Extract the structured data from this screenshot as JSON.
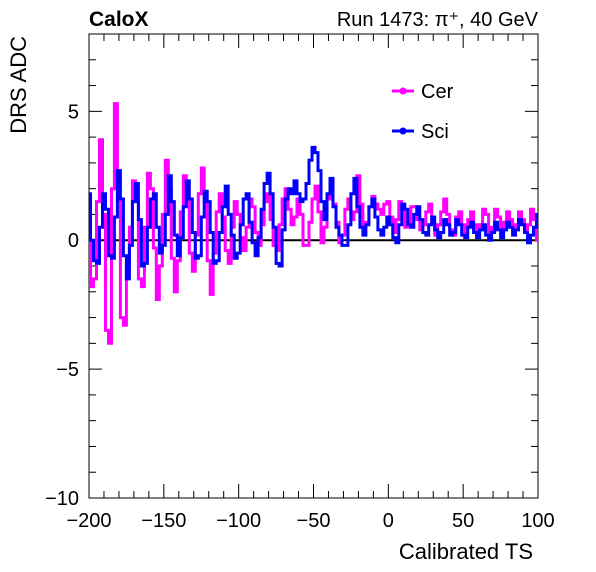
{
  "chart_data": {
    "type": "line",
    "header_left": "CaloX",
    "header_right": "Run 1473:   π⁺, 40 GeV",
    "xlabel": "Calibrated TS",
    "ylabel": "DRS ADC",
    "xlim": [
      -200,
      100
    ],
    "ylim": [
      -10,
      8
    ],
    "x_ticks": [
      -200,
      -150,
      -100,
      -50,
      0,
      50,
      100
    ],
    "x_tick_labels": [
      "−200",
      "−150",
      "−100",
      "−50",
      "0",
      "50",
      "100"
    ],
    "y_ticks": [
      -10,
      -5,
      0,
      5
    ],
    "y_tick_labels": [
      "−10",
      "−5",
      "0",
      "5"
    ],
    "reference_line_y": 0,
    "legend_position": "top-right",
    "series": [
      {
        "name": "Cer",
        "color": "#ff00ff",
        "x": [
          -200,
          -198,
          -196,
          -194,
          -192,
          -190,
          -188,
          -186,
          -184,
          -182,
          -180,
          -178,
          -176,
          -174,
          -172,
          -170,
          -168,
          -166,
          -164,
          -162,
          -160,
          -158,
          -156,
          -154,
          -152,
          -150,
          -148,
          -146,
          -144,
          -142,
          -140,
          -138,
          -136,
          -134,
          -132,
          -130,
          -128,
          -126,
          -124,
          -122,
          -120,
          -118,
          -116,
          -114,
          -112,
          -110,
          -108,
          -106,
          -104,
          -102,
          -100,
          -98,
          -96,
          -94,
          -92,
          -90,
          -88,
          -86,
          -84,
          -82,
          -80,
          -78,
          -76,
          -74,
          -72,
          -70,
          -68,
          -66,
          -64,
          -62,
          -60,
          -58,
          -56,
          -54,
          -52,
          -50,
          -48,
          -46,
          -44,
          -42,
          -40,
          -38,
          -36,
          -34,
          -32,
          -30,
          -28,
          -26,
          -24,
          -22,
          -20,
          -18,
          -16,
          -14,
          -12,
          -10,
          -8,
          -6,
          -4,
          -2,
          0,
          2,
          4,
          6,
          8,
          10,
          12,
          14,
          16,
          18,
          20,
          22,
          24,
          26,
          28,
          30,
          32,
          34,
          36,
          38,
          40,
          42,
          44,
          46,
          48,
          50,
          52,
          54,
          56,
          58,
          60,
          62,
          64,
          66,
          68,
          70,
          72,
          74,
          76,
          78,
          80,
          82,
          84,
          86,
          88,
          90,
          92,
          94,
          96,
          98,
          100
        ],
        "values": [
          1.5,
          -1.8,
          -1.5,
          1.5,
          3.9,
          1.0,
          -3.5,
          -4.0,
          2.0,
          5.3,
          1.5,
          -3.0,
          -3.3,
          -1.0,
          0.5,
          2.3,
          1.5,
          -1.5,
          -1.8,
          0.5,
          2.6,
          2.0,
          -0.3,
          -2.3,
          -1.0,
          1.0,
          3.1,
          2.0,
          -0.7,
          -2.0,
          -0.8,
          1.1,
          2.5,
          1.5,
          -0.5,
          -1.2,
          0.2,
          1.8,
          2.8,
          1.5,
          -0.8,
          -2.1,
          -0.5,
          1.1,
          1.8,
          0.9,
          -0.4,
          -0.9,
          0.5,
          1.5,
          1.0,
          0.1,
          -0.4,
          0.5,
          1.6,
          1.3,
          0.3,
          -0.2,
          0.6,
          1.5,
          1.8,
          0.8,
          -0.2,
          -0.4,
          0.6,
          1.6,
          2.0,
          1.2,
          0.6,
          0.9,
          1.6,
          1.0,
          -0.2,
          -0.2,
          0.7,
          1.6,
          2.1,
          1.1,
          -0.1,
          0.5,
          1.6,
          2.3,
          1.4,
          0.7,
          -0.1,
          0.2,
          1.2,
          1.6,
          0.8,
          1.1,
          2.5,
          1.4,
          0.6,
          0.7,
          1.3,
          1.7,
          1.4,
          1.2,
          1.0,
          1.4,
          1.5,
          0.9,
          0.3,
          0.8,
          1.5,
          1.2,
          0.5,
          0.7,
          1.3,
          1.3,
          0.8,
          0.4,
          0.6,
          1.1,
          1.4,
          0.7,
          0.2,
          0.6,
          1.1,
          1.6,
          1.0,
          0.4,
          0.2,
          0.9,
          1.1,
          0.6,
          0.3,
          0.8,
          1.1,
          0.6,
          0.2,
          0.6,
          1.2,
          1.0,
          0.3,
          0.5,
          1.2,
          0.9,
          0.5,
          0.7,
          1.1,
          0.8,
          0.4,
          0.6,
          1.1,
          0.8,
          0.3,
          0.6,
          1.2,
          0.8,
          0.0
        ]
      },
      {
        "name": "Sci",
        "color": "#0000ff",
        "x": [
          -200,
          -198,
          -196,
          -194,
          -192,
          -190,
          -188,
          -186,
          -184,
          -182,
          -180,
          -178,
          -176,
          -174,
          -172,
          -170,
          -168,
          -166,
          -164,
          -162,
          -160,
          -158,
          -156,
          -154,
          -152,
          -150,
          -148,
          -146,
          -144,
          -142,
          -140,
          -138,
          -136,
          -134,
          -132,
          -130,
          -128,
          -126,
          -124,
          -122,
          -120,
          -118,
          -116,
          -114,
          -112,
          -110,
          -108,
          -106,
          -104,
          -102,
          -100,
          -98,
          -96,
          -94,
          -92,
          -90,
          -88,
          -86,
          -84,
          -82,
          -80,
          -78,
          -76,
          -74,
          -72,
          -70,
          -68,
          -66,
          -64,
          -62,
          -60,
          -58,
          -56,
          -54,
          -52,
          -50,
          -48,
          -46,
          -44,
          -42,
          -40,
          -38,
          -36,
          -34,
          -32,
          -30,
          -28,
          -26,
          -24,
          -22,
          -20,
          -18,
          -16,
          -14,
          -12,
          -10,
          -8,
          -6,
          -4,
          -2,
          0,
          2,
          4,
          6,
          8,
          10,
          12,
          14,
          16,
          18,
          20,
          22,
          24,
          26,
          28,
          30,
          32,
          34,
          36,
          38,
          40,
          42,
          44,
          46,
          48,
          50,
          52,
          54,
          56,
          58,
          60,
          62,
          64,
          66,
          68,
          70,
          72,
          74,
          76,
          78,
          80,
          82,
          84,
          86,
          88,
          90,
          92,
          94,
          96,
          98,
          100
        ],
        "values": [
          1.8,
          0.0,
          -0.8,
          -0.9,
          0.5,
          1.8,
          1.2,
          -0.6,
          -0.7,
          0.9,
          2.7,
          1.6,
          -0.6,
          -1.5,
          -0.2,
          1.5,
          2.2,
          0.8,
          -1.0,
          -0.9,
          0.5,
          1.6,
          1.8,
          0.5,
          -0.5,
          -0.2,
          1.0,
          2.5,
          1.5,
          0.2,
          -0.6,
          0.1,
          1.3,
          2.3,
          1.6,
          0.3,
          -0.7,
          -0.6,
          0.9,
          1.9,
          1.5,
          0.3,
          -0.9,
          -0.8,
          0.3,
          1.3,
          2.1,
          1.0,
          0.2,
          -0.7,
          -0.5,
          0.6,
          1.6,
          1.8,
          0.7,
          -0.1,
          -0.6,
          0.1,
          1.2,
          2.2,
          2.6,
          1.8,
          0.5,
          -0.9,
          -1.0,
          0.4,
          1.6,
          2.0,
          1.8,
          2.3,
          1.8,
          1.5,
          1.6,
          2.2,
          3.1,
          3.6,
          3.4,
          2.7,
          1.5,
          0.8,
          1.8,
          2.4,
          1.3,
          0.5,
          0.2,
          -0.2,
          -0.2,
          0.6,
          1.8,
          2.4,
          1.3,
          0.5,
          0.2,
          0.6,
          1.3,
          1.6,
          0.9,
          0.4,
          0.2,
          0.5,
          0.9,
          0.6,
          0.1,
          -0.1,
          0.6,
          1.4,
          1.2,
          0.6,
          0.5,
          1.0,
          1.3,
          0.8,
          0.3,
          0.2,
          0.6,
          0.9,
          0.4,
          0.1,
          0.3,
          0.8,
          0.6,
          0.2,
          0.3,
          0.8,
          0.6,
          0.2,
          0.1,
          0.5,
          0.7,
          0.3,
          0.1,
          0.4,
          0.6,
          0.2,
          0.0,
          0.3,
          0.7,
          0.4,
          0.1,
          0.4,
          0.7,
          0.5,
          0.2,
          0.4,
          0.8,
          0.6,
          0.3,
          -0.1,
          0.2,
          0.5,
          1.0
        ]
      }
    ]
  }
}
